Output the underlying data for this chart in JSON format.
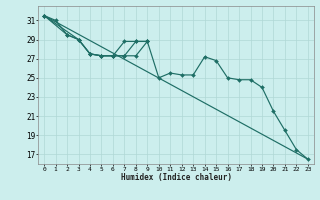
{
  "xlabel": "Humidex (Indice chaleur)",
  "bg_color": "#cceeed",
  "grid_color": "#b0d8d5",
  "line_color": "#1e6e65",
  "xlim": [
    -0.5,
    23.5
  ],
  "ylim": [
    16.0,
    32.5
  ],
  "yticks": [
    17,
    19,
    21,
    23,
    25,
    27,
    29,
    31
  ],
  "xticks": [
    0,
    1,
    2,
    3,
    4,
    5,
    6,
    7,
    8,
    9,
    10,
    11,
    12,
    13,
    14,
    15,
    16,
    17,
    18,
    19,
    20,
    21,
    22,
    23
  ],
  "line_straight": {
    "x": [
      0,
      23
    ],
    "y": [
      31.5,
      16.5
    ]
  },
  "line_main": {
    "x": [
      0,
      1,
      2,
      3,
      4,
      5,
      6,
      7,
      8,
      9,
      10,
      11,
      12,
      13,
      14,
      15,
      16,
      17,
      18,
      19,
      20,
      21,
      22,
      23
    ],
    "y": [
      31.5,
      31.0,
      29.5,
      29.0,
      27.5,
      27.3,
      27.3,
      27.3,
      27.3,
      28.8,
      25.0,
      25.5,
      25.3,
      25.3,
      27.2,
      26.8,
      25.0,
      24.8,
      24.8,
      24.0,
      21.5,
      19.5,
      17.5,
      16.5
    ]
  },
  "line_b": {
    "x": [
      0,
      2,
      3,
      4,
      5,
      6,
      7,
      8,
      9
    ],
    "y": [
      31.5,
      29.5,
      29.0,
      27.5,
      27.3,
      27.3,
      28.8,
      28.8,
      28.8
    ]
  },
  "line_c": {
    "x": [
      0,
      3,
      4,
      5,
      6,
      7,
      8,
      9
    ],
    "y": [
      31.5,
      29.0,
      27.5,
      27.3,
      27.3,
      27.3,
      28.8,
      28.8
    ]
  }
}
